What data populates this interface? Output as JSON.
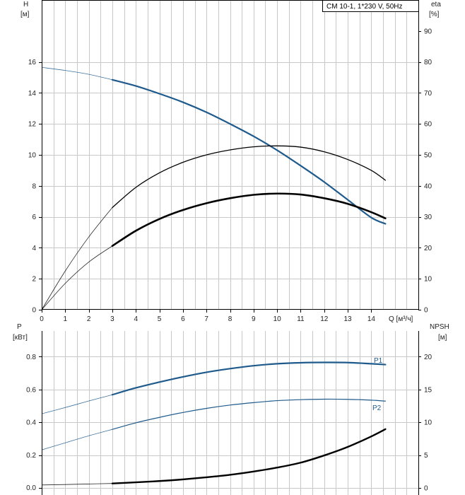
{
  "chart_data": [
    {
      "type": "line",
      "legend_text": "CM 10-1, 1*230 V, 50Hz",
      "ylabel_left": "H",
      "ylabel_left_unit": "[м]",
      "ylabel_right": "eta",
      "ylabel_right_unit": "[%]",
      "xlabel": "Q [м³/ч]",
      "xlim": [
        0,
        16
      ],
      "ylim_left": [
        0,
        20
      ],
      "ylim_right": [
        0,
        100
      ],
      "x_ticks": [
        "0",
        "1",
        "2",
        "3",
        "4",
        "5",
        "6",
        "7",
        "8",
        "9",
        "10",
        "11",
        "12",
        "13",
        "14"
      ],
      "y_left_ticks": [
        "0",
        "2",
        "4",
        "6",
        "8",
        "10",
        "12",
        "14",
        "16"
      ],
      "y_right_ticks": [
        "0",
        "10",
        "20",
        "30",
        "40",
        "50",
        "60",
        "70",
        "80",
        "90"
      ],
      "grid": true,
      "series": [
        {
          "axis": "left",
          "color": "#1f5a8c",
          "points": [
            [
              0,
              15.65
            ],
            [
              1,
              15.45
            ],
            [
              2,
              15.2
            ],
            [
              3,
              14.85
            ],
            [
              4,
              14.45
            ],
            [
              5,
              13.95
            ],
            [
              6,
              13.4
            ],
            [
              7,
              12.75
            ],
            [
              8,
              12.0
            ],
            [
              9,
              11.2
            ],
            [
              10,
              10.3
            ],
            [
              11,
              9.3
            ],
            [
              12,
              8.25
            ],
            [
              13,
              7.1
            ],
            [
              14,
              5.95
            ],
            [
              14.6,
              5.55
            ]
          ],
          "solid_from": 3,
          "width": 2.2
        },
        {
          "axis": "right",
          "color": "#000000",
          "points": [
            [
              0,
              0
            ],
            [
              1,
              12.5
            ],
            [
              2,
              23.5
            ],
            [
              3,
              33.0
            ],
            [
              4,
              39.5
            ],
            [
              5,
              44.2
            ],
            [
              6,
              47.6
            ],
            [
              7,
              50.0
            ],
            [
              8,
              51.6
            ],
            [
              9,
              52.6
            ],
            [
              10,
              52.9
            ],
            [
              11,
              52.5
            ],
            [
              12,
              51.0
            ],
            [
              13,
              48.5
            ],
            [
              14,
              45.0
            ],
            [
              14.6,
              41.8
            ]
          ],
          "solid_from": 3,
          "width": 1.3
        },
        {
          "axis": "right",
          "color": "#000000",
          "points": [
            [
              0,
              0
            ],
            [
              1,
              8.5
            ],
            [
              2,
              15.4
            ],
            [
              3,
              20.6
            ],
            [
              4,
              25.5
            ],
            [
              5,
              29.3
            ],
            [
              6,
              32.2
            ],
            [
              7,
              34.4
            ],
            [
              8,
              36.0
            ],
            [
              9,
              37.1
            ],
            [
              10,
              37.5
            ],
            [
              11,
              37.2
            ],
            [
              12,
              36.0
            ],
            [
              13,
              34.2
            ],
            [
              14,
              31.5
            ],
            [
              14.6,
              29.5
            ]
          ],
          "solid_from": 3,
          "width": 2.6
        }
      ]
    },
    {
      "type": "line",
      "ylabel_left": "P",
      "ylabel_left_unit": "[кВт]",
      "ylabel_right": "NPSH",
      "ylabel_right_unit": "[м]",
      "xlim": [
        0,
        16
      ],
      "ylim_left": [
        0,
        1
      ],
      "ylim_right": [
        0,
        25
      ],
      "y_left_ticks": [
        "0.0",
        "0.2",
        "0.4",
        "0.6",
        "0.8"
      ],
      "y_right_ticks": [
        "0",
        "5",
        "10",
        "15",
        "20"
      ],
      "grid": true,
      "series": [
        {
          "name": "P1",
          "axis": "left",
          "color": "#1f5a8c",
          "points": [
            [
              0,
              0.452
            ],
            [
              1,
              0.49
            ],
            [
              2,
              0.53
            ],
            [
              3,
              0.568
            ],
            [
              4,
              0.61
            ],
            [
              5,
              0.645
            ],
            [
              6,
              0.677
            ],
            [
              7,
              0.705
            ],
            [
              8,
              0.727
            ],
            [
              9,
              0.745
            ],
            [
              10,
              0.757
            ],
            [
              11,
              0.763
            ],
            [
              12,
              0.765
            ],
            [
              13,
              0.764
            ],
            [
              14,
              0.757
            ],
            [
              14.6,
              0.752
            ]
          ],
          "solid_from": 3,
          "width": 2.2
        },
        {
          "name": "P2",
          "axis": "left",
          "color": "#1f5a8c",
          "points": [
            [
              0,
              0.232
            ],
            [
              1,
              0.275
            ],
            [
              2,
              0.318
            ],
            [
              3,
              0.357
            ],
            [
              4,
              0.397
            ],
            [
              5,
              0.43
            ],
            [
              6,
              0.46
            ],
            [
              7,
              0.485
            ],
            [
              8,
              0.505
            ],
            [
              9,
              0.52
            ],
            [
              10,
              0.532
            ],
            [
              11,
              0.538
            ],
            [
              12,
              0.541
            ],
            [
              13,
              0.54
            ],
            [
              14,
              0.535
            ],
            [
              14.6,
              0.529
            ]
          ],
          "solid_from": 3,
          "width": 1.2
        },
        {
          "axis": "right",
          "color": "#000000",
          "points": [
            [
              0,
              0.45
            ],
            [
              1,
              0.52
            ],
            [
              2,
              0.6
            ],
            [
              3,
              0.68
            ],
            [
              4,
              0.85
            ],
            [
              5,
              1.05
            ],
            [
              6,
              1.3
            ],
            [
              7,
              1.62
            ],
            [
              8,
              2.0
            ],
            [
              9,
              2.5
            ],
            [
              10,
              3.1
            ],
            [
              11,
              3.85
            ],
            [
              12,
              4.95
            ],
            [
              13,
              6.25
            ],
            [
              14,
              7.85
            ],
            [
              14.6,
              8.95
            ]
          ],
          "solid_from": 3,
          "width": 2.4
        }
      ]
    }
  ]
}
